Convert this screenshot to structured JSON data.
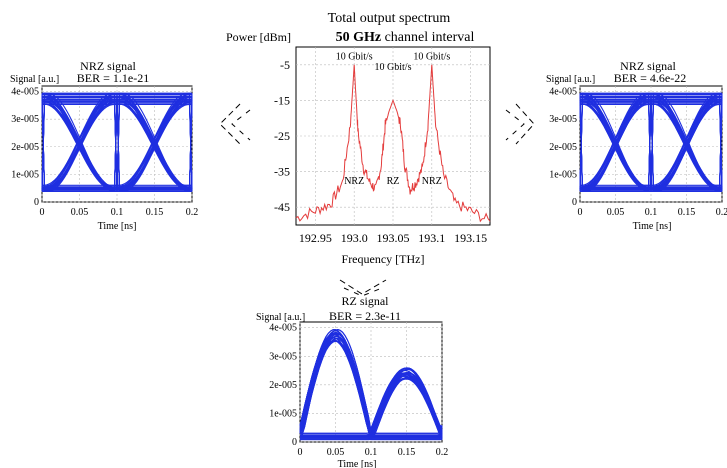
{
  "chart_data": [
    {
      "type": "line",
      "title": "Total output spectrum",
      "subtitle_bold": "50 GHz",
      "subtitle_rest": "channel interval",
      "ylabel": "Power [dBm]",
      "xlabel": "Frequency [THz]",
      "xlim": [
        192.925,
        193.175
      ],
      "ylim": [
        -50,
        0
      ],
      "xticks": [
        192.95,
        193.0,
        193.05,
        193.1,
        193.15
      ],
      "xtick_labels": [
        "192.95",
        "193.0",
        "193.05",
        "193.1",
        "193.15"
      ],
      "yticks": [
        -5,
        -15,
        -25,
        -35,
        -45
      ],
      "ytick_labels": [
        "-5",
        "-15",
        "-25",
        "-35",
        "-45"
      ],
      "grid": true,
      "color": "#e43c3c",
      "x": [
        192.925,
        192.95,
        192.97,
        192.985,
        192.995,
        192.998,
        193.0,
        193.002,
        193.005,
        193.012,
        193.02,
        193.028,
        193.035,
        193.04,
        193.045,
        193.05,
        193.055,
        193.06,
        193.065,
        193.072,
        193.08,
        193.088,
        193.095,
        193.098,
        193.1,
        193.102,
        193.105,
        193.115,
        193.13,
        193.15,
        193.175
      ],
      "y": [
        -48,
        -46,
        -44,
        -38,
        -22,
        -12,
        -5,
        -13,
        -24,
        -34,
        -38,
        -40,
        -33,
        -22,
        -18,
        -15,
        -18,
        -22,
        -33,
        -40,
        -38,
        -34,
        -22,
        -12,
        -5,
        -12,
        -22,
        -36,
        -44,
        -46,
        -49
      ],
      "peak_labels": [
        {
          "x": 193.0,
          "y": -3.5,
          "text": "10 Gbit/s"
        },
        {
          "x": 193.05,
          "y": -6.5,
          "text": "10 Gbit/s"
        },
        {
          "x": 193.1,
          "y": -3.5,
          "text": "10 Gbit/s"
        }
      ],
      "format_labels": [
        {
          "x": 193.0,
          "y": -38.5,
          "text": "NRZ"
        },
        {
          "x": 193.05,
          "y": -38.5,
          "text": "RZ"
        },
        {
          "x": 193.1,
          "y": -38.5,
          "text": "NRZ"
        }
      ]
    },
    {
      "type": "line",
      "title": "NRZ signal",
      "subtitle": "BER = 1.1e-21",
      "ylabel": "Signal [a.u.]",
      "xlabel": "Time [ns]",
      "xlim": [
        0,
        0.2
      ],
      "ylim": [
        0,
        4.2e-05
      ],
      "xticks": [
        0,
        0.05,
        0.1,
        0.15,
        0.2
      ],
      "xtick_labels": [
        "0",
        "0.05",
        "0.1",
        "0.15",
        "0.2"
      ],
      "yticks": [
        0,
        1e-05,
        2e-05,
        3e-05,
        4e-05
      ],
      "ytick_labels": [
        "0",
        "1e-005",
        "2e-005",
        "3e-005",
        "4e-005"
      ],
      "grid": true,
      "color": "#1f2fe0",
      "bit_period_ns": 0.1,
      "high_level": 3.75e-05,
      "low_level": 5e-06
    },
    {
      "type": "line",
      "title": "NRZ signal",
      "subtitle": "BER = 4.6e-22",
      "ylabel": "Signal [a.u.]",
      "xlabel": "Time [ns]",
      "xlim": [
        0,
        0.2
      ],
      "ylim": [
        0,
        4.2e-05
      ],
      "xticks": [
        0,
        0.05,
        0.1,
        0.15,
        0.2
      ],
      "xtick_labels": [
        "0",
        "0.05",
        "0.1",
        "0.15",
        "0.2"
      ],
      "yticks": [
        0,
        1e-05,
        2e-05,
        3e-05,
        4e-05
      ],
      "ytick_labels": [
        "0",
        "1e-005",
        "2e-005",
        "3e-005",
        "4e-005"
      ],
      "grid": true,
      "color": "#1f2fe0",
      "bit_period_ns": 0.1,
      "high_level": 3.75e-05,
      "low_level": 5e-06
    },
    {
      "type": "line",
      "title": "RZ signal",
      "subtitle": "BER = 2.3e-11",
      "ylabel": "Signal [a.u.]",
      "xlabel": "Time [ns]",
      "xlim": [
        0,
        0.2
      ],
      "ylim": [
        0,
        4.2e-05
      ],
      "xticks": [
        0,
        0.05,
        0.1,
        0.15,
        0.2
      ],
      "xtick_labels": [
        "0",
        "0.05",
        "0.1",
        "0.15",
        "0.2"
      ],
      "yticks": [
        0,
        1e-05,
        2e-05,
        3e-05,
        4e-05
      ],
      "ytick_labels": [
        "0",
        "1e-005",
        "2e-005",
        "3e-005",
        "4e-005"
      ],
      "grid": true,
      "color": "#1f2fe0",
      "bit_period_ns": 0.1,
      "high_level": 3.75e-05,
      "low_level": 2e-06,
      "mid_level": 2.4e-05
    }
  ]
}
